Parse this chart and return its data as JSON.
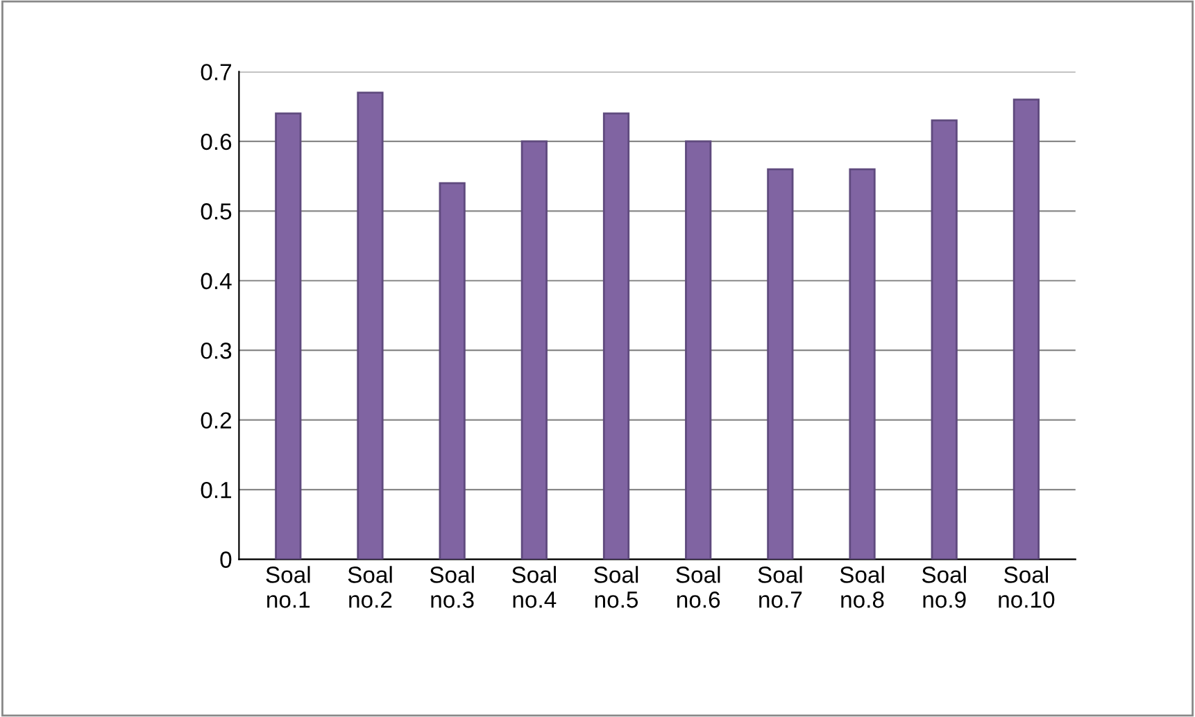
{
  "chart_data": {
    "type": "bar",
    "categories": [
      "Soal\nno.1",
      "Soal\nno.2",
      "Soal\nno.3",
      "Soal\nno.4",
      "Soal\nno.5",
      "Soal\nno.6",
      "Soal\nno.7",
      "Soal\nno.8",
      "Soal\nno.9",
      "Soal\nno.10"
    ],
    "values": [
      0.64,
      0.67,
      0.54,
      0.6,
      0.64,
      0.6,
      0.56,
      0.56,
      0.63,
      0.66
    ],
    "color": "#8064a2",
    "ylim": [
      0,
      0.7
    ],
    "yticks": [
      0,
      0.1,
      0.2,
      0.3,
      0.4,
      0.5,
      0.6,
      0.7
    ],
    "grid": "y"
  }
}
